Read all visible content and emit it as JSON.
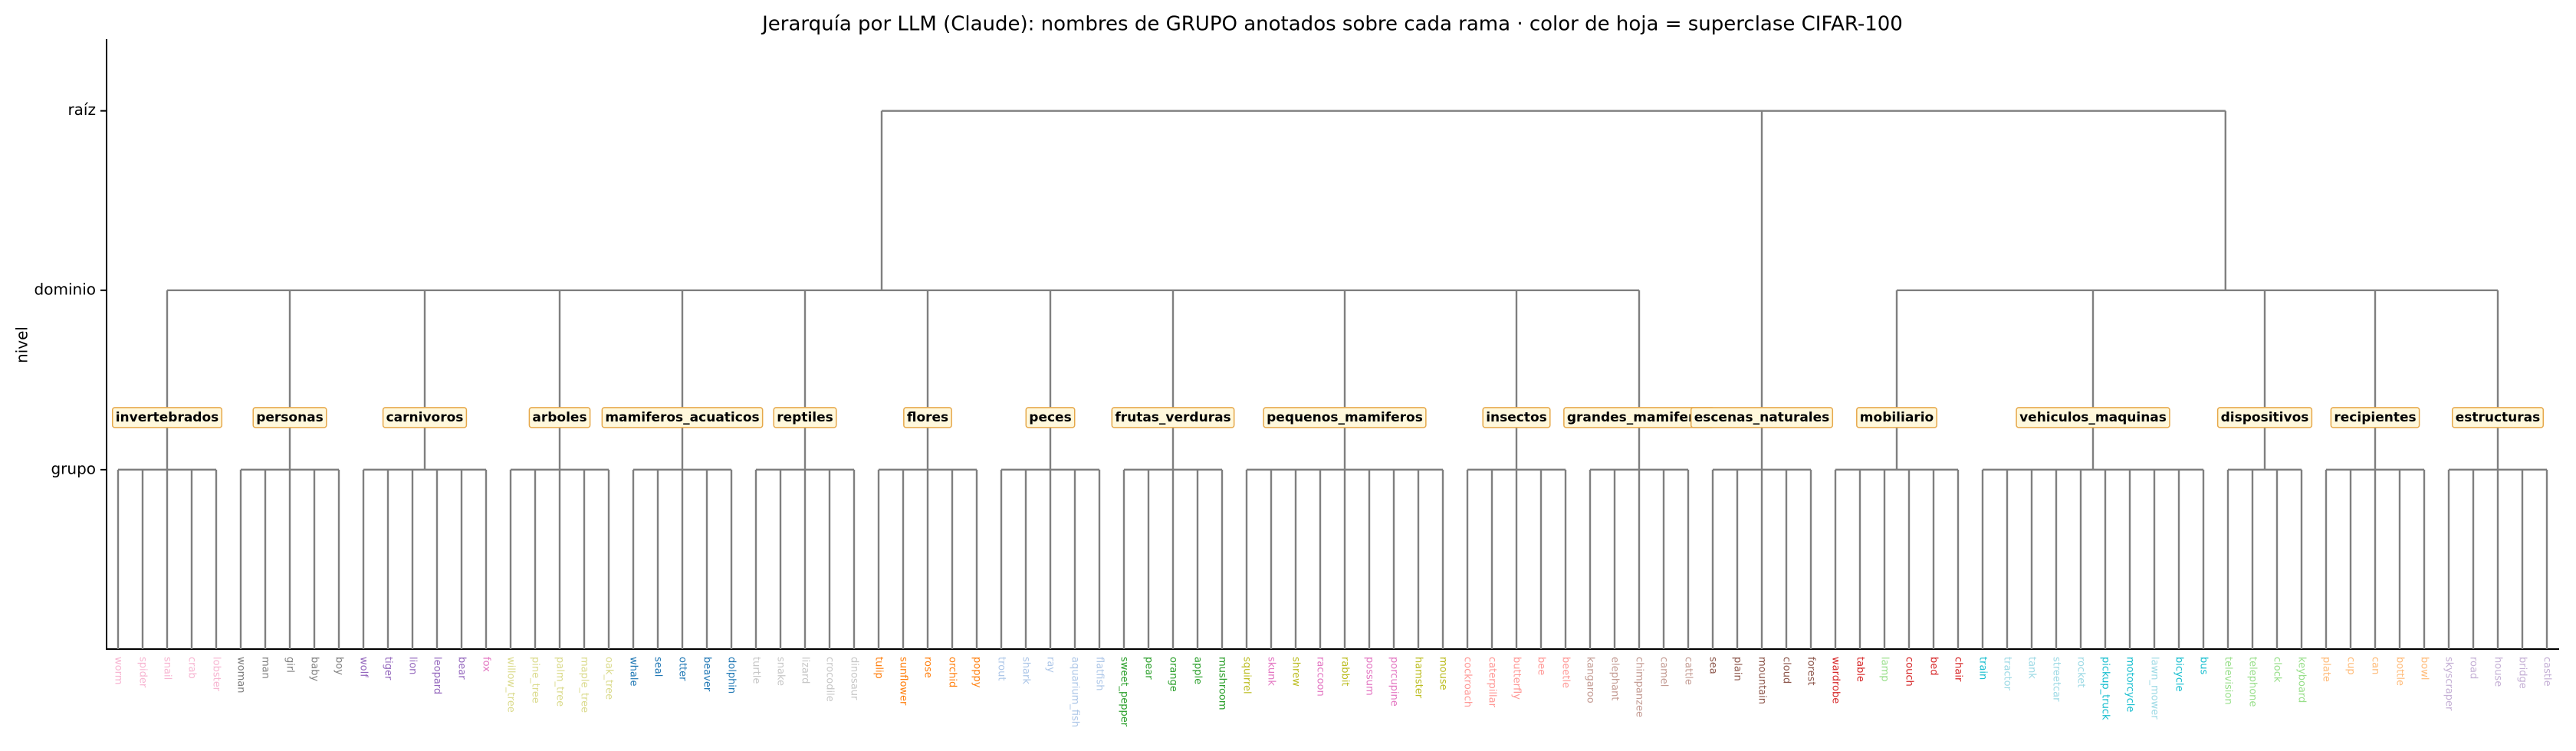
{
  "chart_data": {
    "type": "dendrogram",
    "title": "Jerarquía por LLM (Claude): nombres de GRUPO anotados sobre cada rama  ·  color de hoja = superclase CIFAR-100",
    "ylabel": "nivel",
    "ylim": [
      0,
      3.4
    ],
    "yticks": [
      {
        "value": 1,
        "label": "grupo"
      },
      {
        "value": 2,
        "label": "dominio"
      },
      {
        "value": 3,
        "label": "raíz"
      }
    ],
    "tree": [
      {
        "groups": [
          {
            "name": "invertebrados",
            "leaves": [
              "worm",
              "spider",
              "snail",
              "crab",
              "lobster"
            ],
            "colors": [
              "#f7b6d2",
              "#f7b6d2",
              "#f7b6d2",
              "#f7b6d2",
              "#f7b6d2"
            ]
          },
          {
            "name": "personas",
            "leaves": [
              "woman",
              "man",
              "girl",
              "baby",
              "boy"
            ],
            "colors": [
              "#7f7f7f",
              "#7f7f7f",
              "#7f7f7f",
              "#7f7f7f",
              "#7f7f7f"
            ]
          },
          {
            "name": "carnivoros",
            "leaves": [
              "wolf",
              "tiger",
              "lion",
              "leopard",
              "bear",
              "fox"
            ],
            "colors": [
              "#9467bd",
              "#9467bd",
              "#9467bd",
              "#9467bd",
              "#9467bd",
              "#e377c2"
            ]
          },
          {
            "name": "arboles",
            "leaves": [
              "willow_tree",
              "pine_tree",
              "palm_tree",
              "maple_tree",
              "oak_tree"
            ],
            "colors": [
              "#dbdb8d",
              "#dbdb8d",
              "#dbdb8d",
              "#dbdb8d",
              "#dbdb8d"
            ]
          },
          {
            "name": "mamiferos_acuaticos",
            "leaves": [
              "whale",
              "seal",
              "otter",
              "beaver",
              "dolphin"
            ],
            "colors": [
              "#1f77b4",
              "#1f77b4",
              "#1f77b4",
              "#1f77b4",
              "#1f77b4"
            ]
          },
          {
            "name": "reptiles",
            "leaves": [
              "turtle",
              "snake",
              "lizard",
              "crocodile",
              "dinosaur"
            ],
            "colors": [
              "#c7c7c7",
              "#c7c7c7",
              "#c7c7c7",
              "#c7c7c7",
              "#c7c7c7"
            ]
          },
          {
            "name": "flores",
            "leaves": [
              "tulip",
              "sunflower",
              "rose",
              "orchid",
              "poppy"
            ],
            "colors": [
              "#ff7f0e",
              "#ff7f0e",
              "#ff7f0e",
              "#ff7f0e",
              "#ff7f0e"
            ]
          },
          {
            "name": "peces",
            "leaves": [
              "trout",
              "shark",
              "ray",
              "aquarium_fish",
              "flatfish"
            ],
            "colors": [
              "#aec7e8",
              "#aec7e8",
              "#aec7e8",
              "#aec7e8",
              "#aec7e8"
            ]
          },
          {
            "name": "frutas_verduras",
            "leaves": [
              "sweet_pepper",
              "pear",
              "orange",
              "apple",
              "mushroom"
            ],
            "colors": [
              "#2ca02c",
              "#2ca02c",
              "#2ca02c",
              "#2ca02c",
              "#2ca02c"
            ]
          },
          {
            "name": "pequenos_mamiferos",
            "leaves": [
              "squirrel",
              "skunk",
              "shrew",
              "raccoon",
              "rabbit",
              "possum",
              "porcupine",
              "hamster",
              "mouse"
            ],
            "colors": [
              "#bcbd22",
              "#e377c2",
              "#bcbd22",
              "#e377c2",
              "#bcbd22",
              "#e377c2",
              "#e377c2",
              "#bcbd22",
              "#bcbd22"
            ]
          },
          {
            "name": "insectos",
            "leaves": [
              "cockroach",
              "caterpillar",
              "butterfly",
              "bee",
              "beetle"
            ],
            "colors": [
              "#ff9896",
              "#ff9896",
              "#ff9896",
              "#ff9896",
              "#ff9896"
            ]
          },
          {
            "name": "grandes_mamiferos",
            "leaves": [
              "kangaroo",
              "elephant",
              "chimpanzee",
              "camel",
              "cattle"
            ],
            "colors": [
              "#c49c94",
              "#c49c94",
              "#c49c94",
              "#c49c94",
              "#c49c94"
            ]
          }
        ]
      },
      {
        "name": "escenas_naturales",
        "leaves": [
          "sea",
          "plain",
          "mountain",
          "cloud",
          "forest"
        ],
        "colors": [
          "#8c564b",
          "#8c564b",
          "#8c564b",
          "#8c564b",
          "#8c564b"
        ]
      },
      {
        "groups": [
          {
            "name": "mobiliario",
            "leaves": [
              "wardrobe",
              "table",
              "lamp",
              "couch",
              "bed",
              "chair"
            ],
            "colors": [
              "#d62728",
              "#d62728",
              "#98df8a",
              "#d62728",
              "#d62728",
              "#d62728"
            ]
          },
          {
            "name": "vehiculos_maquinas",
            "leaves": [
              "train",
              "tractor",
              "tank",
              "streetcar",
              "rocket",
              "pickup_truck",
              "motorcycle",
              "lawn_mower",
              "bicycle",
              "bus"
            ],
            "colors": [
              "#17becf",
              "#9edae5",
              "#9edae5",
              "#9edae5",
              "#9edae5",
              "#17becf",
              "#17becf",
              "#9edae5",
              "#17becf",
              "#17becf"
            ]
          },
          {
            "name": "dispositivos",
            "leaves": [
              "television",
              "telephone",
              "clock",
              "keyboard"
            ],
            "colors": [
              "#98df8a",
              "#98df8a",
              "#98df8a",
              "#98df8a"
            ]
          },
          {
            "name": "recipientes",
            "leaves": [
              "plate",
              "cup",
              "can",
              "bottle",
              "bowl"
            ],
            "colors": [
              "#ffbb78",
              "#ffbb78",
              "#ffbb78",
              "#ffbb78",
              "#ffbb78"
            ]
          },
          {
            "name": "estructuras",
            "leaves": [
              "skyscraper",
              "road",
              "house",
              "bridge",
              "castle"
            ],
            "colors": [
              "#c5b0d5",
              "#c5b0d5",
              "#c5b0d5",
              "#c5b0d5",
              "#c5b0d5"
            ]
          }
        ]
      }
    ]
  }
}
